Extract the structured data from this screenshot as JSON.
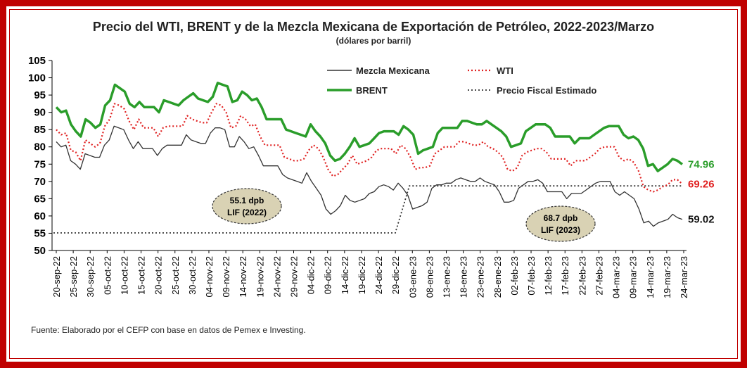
{
  "chart_data": {
    "type": "line",
    "title": "Precio del WTI, BRENT y de la Mezcla Mexicana de Exportación de Petróleo, 2022-2023/Marzo",
    "subtitle": "(dólares por barril)",
    "ylim": [
      50,
      105
    ],
    "yticks": [
      50,
      55,
      60,
      65,
      70,
      75,
      80,
      85,
      90,
      95,
      100,
      105
    ],
    "x_tick_labels": [
      "20-sep-22",
      "25-sep-22",
      "30-sep-22",
      "05-oct-22",
      "10-oct-22",
      "15-oct-22",
      "20-oct-22",
      "25-oct-22",
      "30-oct-22",
      "04-nov-22",
      "09-nov-22",
      "14-nov-22",
      "19-nov-22",
      "24-nov-22",
      "29-nov-22",
      "04-dic-22",
      "09-dic-22",
      "14-dic-22",
      "19-dic-22",
      "24-dic-22",
      "29-dic-22",
      "03-ene-23",
      "08-ene-23",
      "13-ene-23",
      "18-ene-23",
      "23-ene-23",
      "28-ene-23",
      "02-feb-23",
      "07-feb-23",
      "12-feb-23",
      "17-feb-23",
      "22-feb-23",
      "27-feb-23",
      "04-mar-23",
      "09-mar-23",
      "14-mar-23",
      "19-mar-23",
      "24-mar-23"
    ],
    "series": [
      {
        "name": "Mezcla Mexicana",
        "color": "#333333",
        "style": "solid-thin",
        "values": [
          81.5,
          80.0,
          80.5,
          76.0,
          75.0,
          73.5,
          78.0,
          77.5,
          77.0,
          77.0,
          80.5,
          82.0,
          86.0,
          85.5,
          85.0,
          82.0,
          79.5,
          81.5,
          79.5,
          79.5,
          79.5,
          77.5,
          79.5,
          80.5,
          80.5,
          80.5,
          80.5,
          83.5,
          82.0,
          81.5,
          81.0,
          81.0,
          84.0,
          85.5,
          85.5,
          85.0,
          80.0,
          80.0,
          83.0,
          81.5,
          79.5,
          80.0,
          77.5,
          74.5,
          74.5,
          74.5,
          74.5,
          72.0,
          71.0,
          70.5,
          70.0,
          69.5,
          72.5,
          70.0,
          68.0,
          66.0,
          62.0,
          60.5,
          61.5,
          63.0,
          66.0,
          64.5,
          64.0,
          64.5,
          65.0,
          66.5,
          67.0,
          68.5,
          69.0,
          68.5,
          67.5,
          69.5,
          68.0,
          66.0,
          62.0,
          62.5,
          63.0,
          64.0,
          68.0,
          69.0,
          69.0,
          69.5,
          69.5,
          70.5,
          71.0,
          70.5,
          70.0,
          70.0,
          71.0,
          70.0,
          69.5,
          69.0,
          67.0,
          64.0,
          64.0,
          64.5,
          68.0,
          69.0,
          70.0,
          70.0,
          70.5,
          69.5,
          67.0,
          67.0,
          67.0,
          67.0,
          65.0,
          66.5,
          66.5,
          66.5,
          67.5,
          68.5,
          69.5,
          70.0,
          70.0,
          70.0,
          67.0,
          66.0,
          67.0,
          66.0,
          65.0,
          62.0,
          58.0,
          58.5,
          57.0,
          58.0,
          58.5,
          59.0,
          60.5,
          59.5,
          59.02
        ],
        "end_label": "59.02"
      },
      {
        "name": "WTI",
        "color": "#e02020",
        "style": "dotted",
        "values": [
          85.0,
          83.5,
          84.0,
          79.0,
          78.5,
          76.0,
          82.0,
          81.0,
          80.0,
          81.0,
          86.0,
          88.0,
          92.5,
          92.0,
          91.0,
          87.5,
          85.0,
          88.0,
          85.5,
          85.5,
          85.5,
          83.0,
          85.5,
          86.0,
          86.0,
          86.0,
          86.0,
          89.0,
          88.0,
          87.5,
          87.0,
          87.0,
          90.0,
          92.5,
          92.0,
          90.0,
          85.5,
          86.0,
          89.0,
          88.0,
          86.0,
          86.5,
          83.0,
          80.5,
          80.5,
          80.5,
          80.5,
          77.0,
          76.5,
          76.0,
          76.0,
          76.5,
          79.0,
          80.5,
          79.5,
          77.0,
          73.5,
          71.5,
          72.0,
          73.5,
          75.0,
          77.5,
          75.0,
          75.5,
          76.0,
          77.0,
          79.0,
          79.5,
          79.5,
          79.5,
          78.0,
          80.5,
          79.5,
          77.0,
          73.5,
          74.0,
          74.0,
          74.5,
          78.0,
          79.0,
          80.0,
          80.0,
          80.0,
          81.5,
          81.5,
          81.0,
          80.5,
          80.5,
          81.5,
          80.0,
          79.5,
          78.5,
          77.0,
          73.5,
          73.0,
          74.0,
          77.5,
          78.5,
          79.0,
          79.5,
          79.5,
          78.5,
          76.5,
          76.5,
          76.5,
          76.5,
          74.5,
          76.0,
          76.0,
          76.0,
          77.0,
          78.0,
          79.5,
          80.0,
          80.0,
          80.0,
          77.0,
          76.0,
          76.5,
          75.5,
          73.0,
          68.5,
          67.5,
          67.0,
          67.5,
          68.5,
          69.0,
          70.5,
          70.5,
          69.26
        ],
        "end_label": "69.26"
      },
      {
        "name": "BRENT",
        "color": "#2a9d2a",
        "style": "solid-thick",
        "values": [
          91.5,
          90.0,
          90.5,
          86.5,
          84.5,
          83.0,
          88.0,
          87.0,
          85.5,
          86.5,
          92.0,
          93.5,
          98.0,
          97.0,
          96.0,
          92.5,
          91.5,
          93.0,
          91.5,
          91.5,
          91.5,
          90.0,
          93.5,
          93.0,
          92.5,
          92.0,
          93.5,
          94.5,
          95.5,
          94.0,
          93.5,
          93.0,
          94.5,
          98.5,
          98.0,
          97.5,
          93.0,
          93.5,
          96.0,
          95.0,
          93.5,
          94.0,
          91.5,
          88.0,
          88.0,
          88.0,
          88.0,
          85.0,
          84.5,
          84.0,
          83.5,
          83.0,
          86.5,
          84.5,
          83.0,
          81.0,
          77.5,
          76.0,
          76.5,
          78.0,
          80.0,
          82.5,
          80.0,
          80.5,
          81.0,
          82.5,
          84.0,
          84.5,
          84.5,
          84.5,
          83.5,
          86.0,
          85.0,
          83.5,
          78.0,
          79.0,
          79.5,
          80.0,
          84.0,
          85.5,
          85.5,
          85.5,
          85.5,
          87.5,
          87.5,
          87.0,
          86.5,
          86.5,
          87.5,
          86.5,
          85.5,
          84.5,
          83.0,
          80.0,
          80.5,
          81.0,
          84.5,
          85.5,
          86.5,
          86.5,
          86.5,
          85.5,
          83.0,
          83.0,
          83.0,
          83.0,
          81.0,
          82.5,
          82.5,
          82.5,
          83.5,
          84.5,
          85.5,
          86.0,
          86.0,
          86.0,
          83.5,
          82.5,
          83.0,
          82.0,
          79.5,
          74.5,
          75.0,
          73.0,
          74.0,
          75.0,
          76.5,
          76.0,
          74.96
        ],
        "end_label": "74.96"
      },
      {
        "name": "Precio Fiscal Estimado",
        "color": "#333333",
        "style": "dotted-black",
        "segments": [
          {
            "from": "20-sep-22",
            "to": "31-dic-22",
            "value": 55.1
          },
          {
            "from": "03-ene-23",
            "to": "24-mar-23",
            "value": 68.7
          }
        ]
      }
    ],
    "annotations": [
      {
        "id": "lif2022",
        "lines": [
          "55.1 dpb",
          "LIF (2022)"
        ]
      },
      {
        "id": "lif2023",
        "lines": [
          "68.7 dpb",
          "LIF (2023)"
        ]
      }
    ],
    "legend": {
      "placement": "top-center",
      "entries": [
        "Mezcla Mexicana",
        "WTI",
        "BRENT",
        "Precio Fiscal Estimado"
      ]
    },
    "grid": false
  },
  "source": "Fuente: Elaborado por el CEFP con base en datos de Pemex e Investing.",
  "colors": {
    "frame": "#c00000",
    "brent": "#2a9d2a",
    "wti": "#e02020",
    "mezcla": "#333333",
    "bubble": "#d9d2b4"
  }
}
